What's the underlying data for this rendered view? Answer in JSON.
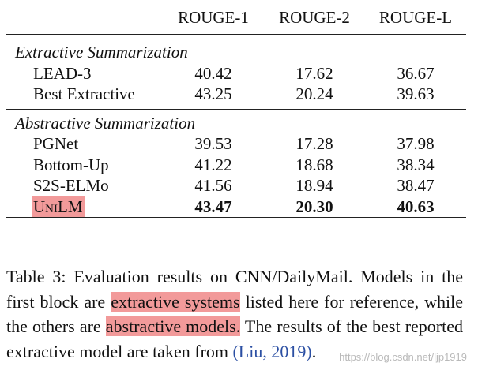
{
  "table": {
    "columns": [
      "ROUGE-1",
      "ROUGE-2",
      "ROUGE-L"
    ],
    "groups": [
      {
        "title": "Extractive Summarization",
        "rows": [
          {
            "model": "LEAD-3",
            "values": [
              "40.42",
              "17.62",
              "36.67"
            ]
          },
          {
            "model": "Best Extractive",
            "values": [
              "43.25",
              "20.24",
              "39.63"
            ]
          }
        ]
      },
      {
        "title": "Abstractive Summarization",
        "rows": [
          {
            "model": "PGNet",
            "values": [
              "39.53",
              "17.28",
              "37.98"
            ]
          },
          {
            "model": "Bottom-Up",
            "values": [
              "41.22",
              "18.68",
              "38.34"
            ]
          },
          {
            "model": "S2S-ELMo",
            "values": [
              "41.56",
              "18.94",
              "38.47"
            ]
          },
          {
            "model": "UniLM",
            "values": [
              "43.47",
              "20.30",
              "40.63"
            ],
            "bold": true,
            "highlight": true,
            "small_caps": true
          }
        ]
      }
    ]
  },
  "caption": [
    {
      "text": "Table 3: Evaluation results on CNN/DailyMail. Models in the first block are "
    },
    {
      "text": "extractive systems",
      "highlight": true
    },
    {
      "text": " listed here for reference, while the others are "
    },
    {
      "text": "abstractive models.",
      "highlight": true
    },
    {
      "text": " The results of the best reported extractive model are taken from "
    },
    {
      "text": "(Liu, 2019)",
      "cite": true
    },
    {
      "text": "."
    }
  ],
  "watermark": "https://blog.csdn.net/ljp1919"
}
